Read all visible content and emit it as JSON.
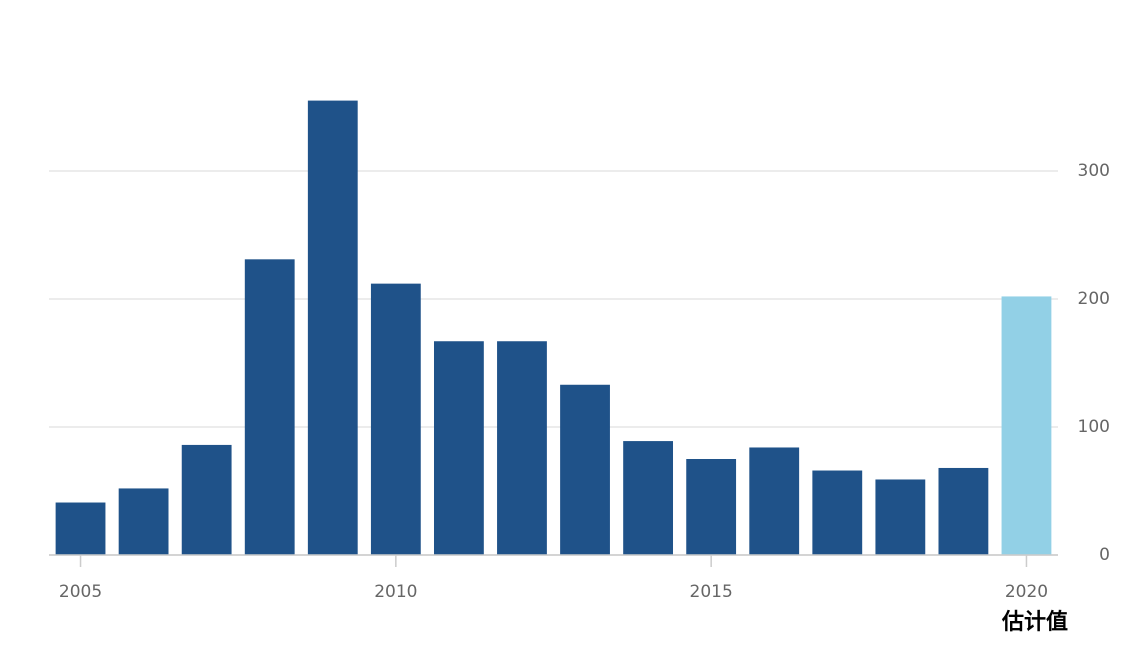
{
  "chart_data": {
    "type": "bar",
    "x": [
      2005,
      2006,
      2007,
      2008,
      2009,
      2010,
      2011,
      2012,
      2013,
      2014,
      2015,
      2016,
      2017,
      2018,
      2019,
      2020
    ],
    "values": [
      41,
      52,
      86,
      231,
      355,
      212,
      167,
      167,
      133,
      89,
      75,
      84,
      66,
      59,
      68,
      202
    ],
    "colors": [
      "#1f5289",
      "#1f5289",
      "#1f5289",
      "#1f5289",
      "#1f5289",
      "#1f5289",
      "#1f5289",
      "#1f5289",
      "#1f5289",
      "#1f5289",
      "#1f5289",
      "#1f5289",
      "#1f5289",
      "#1f5289",
      "#1f5289",
      "#92d0e6"
    ],
    "xlim": [
      2004.5,
      2020.5
    ],
    "xticks": [
      2005,
      2010,
      2015,
      2020
    ],
    "ylim": [
      0,
      400
    ],
    "yticks": [
      0,
      100,
      200,
      300
    ],
    "grid": true,
    "y_axis_side": "right",
    "annotation": "估计值"
  }
}
